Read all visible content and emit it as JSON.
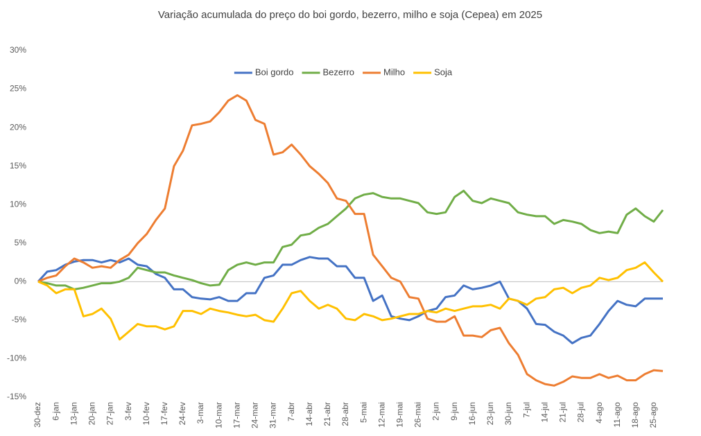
{
  "chart_data": {
    "type": "line",
    "title": "Variação acumulada do preço do boi gordo, bezerro, milho e soja (Cepea) em 2025",
    "categories": [
      "30-dez",
      null,
      "6-jan",
      null,
      "13-jan",
      null,
      "20-jan",
      null,
      "27-jan",
      null,
      "3-fev",
      null,
      "10-fev",
      null,
      "17-fev",
      null,
      "24-fev",
      null,
      "3-mar",
      null,
      "10-mar",
      null,
      "17-mar",
      null,
      "24-mar",
      null,
      "31-mar",
      null,
      "7-abr",
      null,
      "14-abr",
      null,
      "21-abr",
      null,
      "28-abr",
      null,
      "5-mai",
      null,
      "12-mai",
      null,
      "19-mai",
      null,
      "26-mai",
      null,
      "2-jun",
      null,
      "9-jun",
      null,
      "16-jun",
      null,
      "23-jun",
      null,
      "30-jun",
      null,
      "7-jul",
      null,
      "14-jul",
      null,
      "21-jul",
      null,
      "28-jul",
      null,
      "4-ago",
      null,
      "11-ago",
      null,
      "18-ago",
      null,
      "25-ago",
      null
    ],
    "series": [
      {
        "name": "Boi gordo",
        "color": "#4472c4",
        "values": [
          0,
          1.3,
          1.5,
          2.2,
          2.6,
          2.8,
          2.8,
          2.5,
          2.8,
          2.5,
          3.0,
          2.2,
          2.0,
          1.0,
          0.5,
          -1.0,
          -1.0,
          -2.0,
          -2.2,
          -2.3,
          -2.0,
          -2.5,
          -2.5,
          -1.5,
          -1.5,
          0.5,
          0.8,
          2.2,
          2.2,
          2.8,
          3.2,
          3.0,
          3.0,
          2.0,
          2.0,
          0.5,
          0.5,
          -2.5,
          -1.8,
          -4.5,
          -4.8,
          -5.0,
          -4.5,
          -3.8,
          -3.5,
          -2.0,
          -1.8,
          -0.5,
          -1.0,
          -0.8,
          -0.5,
          0,
          -2.2,
          -2.5,
          -3.5,
          -5.5,
          -5.6,
          -6.5,
          -7.0,
          -8.0,
          -7.3,
          -7.0,
          -5.5,
          -3.8,
          -2.5,
          -3.0,
          -3.2,
          -2.2,
          -2.2,
          -2.2
        ]
      },
      {
        "name": "Bezerro",
        "color": "#70ad47",
        "values": [
          0,
          -0.2,
          -0.5,
          -0.5,
          -1.0,
          -0.8,
          -0.5,
          -0.2,
          -0.2,
          0,
          0.5,
          1.8,
          1.5,
          1.2,
          1.2,
          0.8,
          0.5,
          0.2,
          -0.2,
          -0.5,
          -0.4,
          1.5,
          2.2,
          2.5,
          2.2,
          2.5,
          2.5,
          4.5,
          4.8,
          6.0,
          6.2,
          7.0,
          7.5,
          8.5,
          9.5,
          10.8,
          11.3,
          11.5,
          11.0,
          10.8,
          10.8,
          10.5,
          10.2,
          9.0,
          8.8,
          9.0,
          11.0,
          11.8,
          10.5,
          10.2,
          10.8,
          10.5,
          10.2,
          9.0,
          8.7,
          8.5,
          8.5,
          7.5,
          8.0,
          7.8,
          7.5,
          6.7,
          6.3,
          6.5,
          6.3,
          8.7,
          9.5,
          8.5,
          7.8,
          9.3
        ]
      },
      {
        "name": "Milho",
        "color": "#ed7d31",
        "values": [
          0,
          0.5,
          0.8,
          2.0,
          3.0,
          2.5,
          1.8,
          2.0,
          1.8,
          2.8,
          3.5,
          5.0,
          6.2,
          8.0,
          9.5,
          15.0,
          17.0,
          20.3,
          20.5,
          20.8,
          22.0,
          23.5,
          24.2,
          23.5,
          21.0,
          20.5,
          16.5,
          16.8,
          17.8,
          16.5,
          15.0,
          14.0,
          12.8,
          10.8,
          10.5,
          8.8,
          8.8,
          3.5,
          2.0,
          0.5,
          0,
          -2.0,
          -2.2,
          -4.8,
          -5.2,
          -5.2,
          -4.5,
          -7.0,
          -7.0,
          -7.2,
          -6.3,
          -6.0,
          -8.0,
          -9.5,
          -12.0,
          -12.8,
          -13.3,
          -13.5,
          -13.0,
          -12.3,
          -12.5,
          -12.5,
          -12.0,
          -12.5,
          -12.2,
          -12.8,
          -12.8,
          -12.0,
          -11.5,
          -11.6
        ]
      },
      {
        "name": "Soja",
        "color": "#ffc000",
        "values": [
          0,
          -0.5,
          -1.5,
          -1.0,
          -1.0,
          -4.5,
          -4.2,
          -3.5,
          -4.8,
          -7.5,
          -6.5,
          -5.5,
          -5.8,
          -5.8,
          -6.2,
          -5.8,
          -3.8,
          -3.8,
          -4.2,
          -3.5,
          -3.8,
          -4.0,
          -4.3,
          -4.5,
          -4.3,
          -5.0,
          -5.2,
          -3.5,
          -1.5,
          -1.2,
          -2.5,
          -3.5,
          -3.0,
          -3.5,
          -4.8,
          -5.0,
          -4.2,
          -4.5,
          -5.0,
          -4.8,
          -4.5,
          -4.2,
          -4.2,
          -3.8,
          -4.0,
          -3.5,
          -3.8,
          -3.5,
          -3.2,
          -3.2,
          -3.0,
          -3.5,
          -2.2,
          -2.5,
          -3.0,
          -2.2,
          -2.0,
          -1.0,
          -0.8,
          -1.5,
          -0.8,
          -0.5,
          0.5,
          0.2,
          0.5,
          1.5,
          1.8,
          2.5,
          1.2,
          0
        ]
      }
    ],
    "ylim": [
      -15,
      30
    ],
    "yticks": [
      {
        "value": -15,
        "label": "-15%"
      },
      {
        "value": -10,
        "label": "-10%"
      },
      {
        "value": -5,
        "label": "-5%"
      },
      {
        "value": 0,
        "label": "0%"
      },
      {
        "value": 5,
        "label": "5%"
      },
      {
        "value": 10,
        "label": "10%"
      },
      {
        "value": 15,
        "label": "15%"
      },
      {
        "value": 20,
        "label": "20%"
      },
      {
        "value": 25,
        "label": "25%"
      },
      {
        "value": 30,
        "label": "30%"
      }
    ],
    "grid": false,
    "legend": "top"
  }
}
